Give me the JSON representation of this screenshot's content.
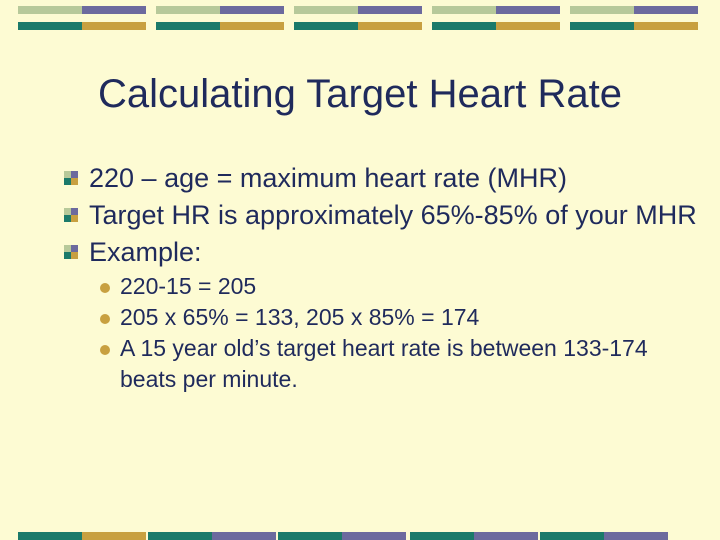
{
  "slide": {
    "title": "Calculating Target Heart Rate",
    "bullets": [
      {
        "text": "220 – age = maximum heart rate (MHR)"
      },
      {
        "text": "Target HR is approximately 65%-85% of your MHR"
      },
      {
        "text": "Example:"
      }
    ],
    "sub_bullets": [
      {
        "text": "220-15 = 205"
      },
      {
        "text": "205 x 65% = 133, 205 x 85% = 174"
      },
      {
        "text": "A 15 year old’s target heart rate is between 133-174 beats per minute."
      }
    ]
  },
  "colors": {
    "background": "#fdfbd3",
    "title_text": "#1f2a5c",
    "teal": "#1b7a6a",
    "purple": "#6c6a9e",
    "gold": "#c8a040",
    "sage": "#b7c99a"
  }
}
